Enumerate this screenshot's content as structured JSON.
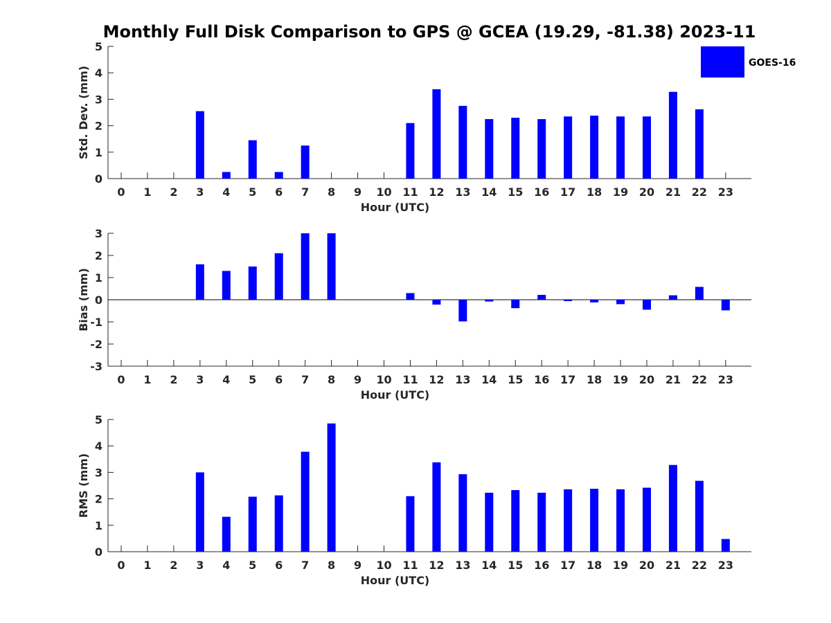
{
  "title": "Monthly Full Disk Comparison to GPS @ GCEA (19.29, -81.38) 2023-11",
  "legend": {
    "label": "GOES-16",
    "color": "#0000ff",
    "placement": "top-right"
  },
  "chart_data": [
    {
      "type": "bar",
      "ylabel": "Std. Dev. (mm)",
      "xlabel": "Hour (UTC)",
      "ylim": [
        0,
        5
      ],
      "yticks": [
        0,
        1,
        2,
        3,
        4,
        5
      ],
      "categories": [
        "0",
        "1",
        "2",
        "3",
        "4",
        "5",
        "6",
        "7",
        "8",
        "9",
        "10",
        "11",
        "12",
        "13",
        "14",
        "15",
        "16",
        "17",
        "18",
        "19",
        "20",
        "21",
        "22",
        "23"
      ],
      "series": [
        {
          "name": "GOES-16",
          "values": [
            null,
            null,
            null,
            2.55,
            0.25,
            1.45,
            0.25,
            1.25,
            null,
            null,
            null,
            2.1,
            3.38,
            2.75,
            2.25,
            2.3,
            2.25,
            2.35,
            2.38,
            2.35,
            2.35,
            3.28,
            2.62,
            null
          ]
        }
      ]
    },
    {
      "type": "bar",
      "ylabel": "Bias (mm)",
      "xlabel": "Hour (UTC)",
      "ylim": [
        -3,
        3
      ],
      "yticks": [
        -3,
        -2,
        -1,
        0,
        1,
        2,
        3
      ],
      "categories": [
        "0",
        "1",
        "2",
        "3",
        "4",
        "5",
        "6",
        "7",
        "8",
        "9",
        "10",
        "11",
        "12",
        "13",
        "14",
        "15",
        "16",
        "17",
        "18",
        "19",
        "20",
        "21",
        "22",
        "23"
      ],
      "series": [
        {
          "name": "GOES-16",
          "values": [
            null,
            null,
            null,
            1.6,
            1.3,
            1.5,
            2.1,
            3.0,
            3.0,
            null,
            null,
            0.3,
            -0.22,
            -0.98,
            -0.08,
            -0.38,
            0.22,
            -0.06,
            -0.12,
            -0.2,
            -0.45,
            0.2,
            0.58,
            -0.48
          ]
        }
      ]
    },
    {
      "type": "bar",
      "ylabel": "RMS (mm)",
      "xlabel": "Hour (UTC)",
      "ylim": [
        0,
        5
      ],
      "yticks": [
        0,
        1,
        2,
        3,
        4,
        5
      ],
      "categories": [
        "0",
        "1",
        "2",
        "3",
        "4",
        "5",
        "6",
        "7",
        "8",
        "9",
        "10",
        "11",
        "12",
        "13",
        "14",
        "15",
        "16",
        "17",
        "18",
        "19",
        "20",
        "21",
        "22",
        "23"
      ],
      "series": [
        {
          "name": "GOES-16",
          "values": [
            null,
            null,
            null,
            3.0,
            1.32,
            2.08,
            2.13,
            3.78,
            4.85,
            null,
            null,
            2.1,
            3.38,
            2.93,
            2.23,
            2.33,
            2.23,
            2.36,
            2.38,
            2.36,
            2.42,
            3.28,
            2.68,
            0.48
          ]
        }
      ]
    }
  ]
}
